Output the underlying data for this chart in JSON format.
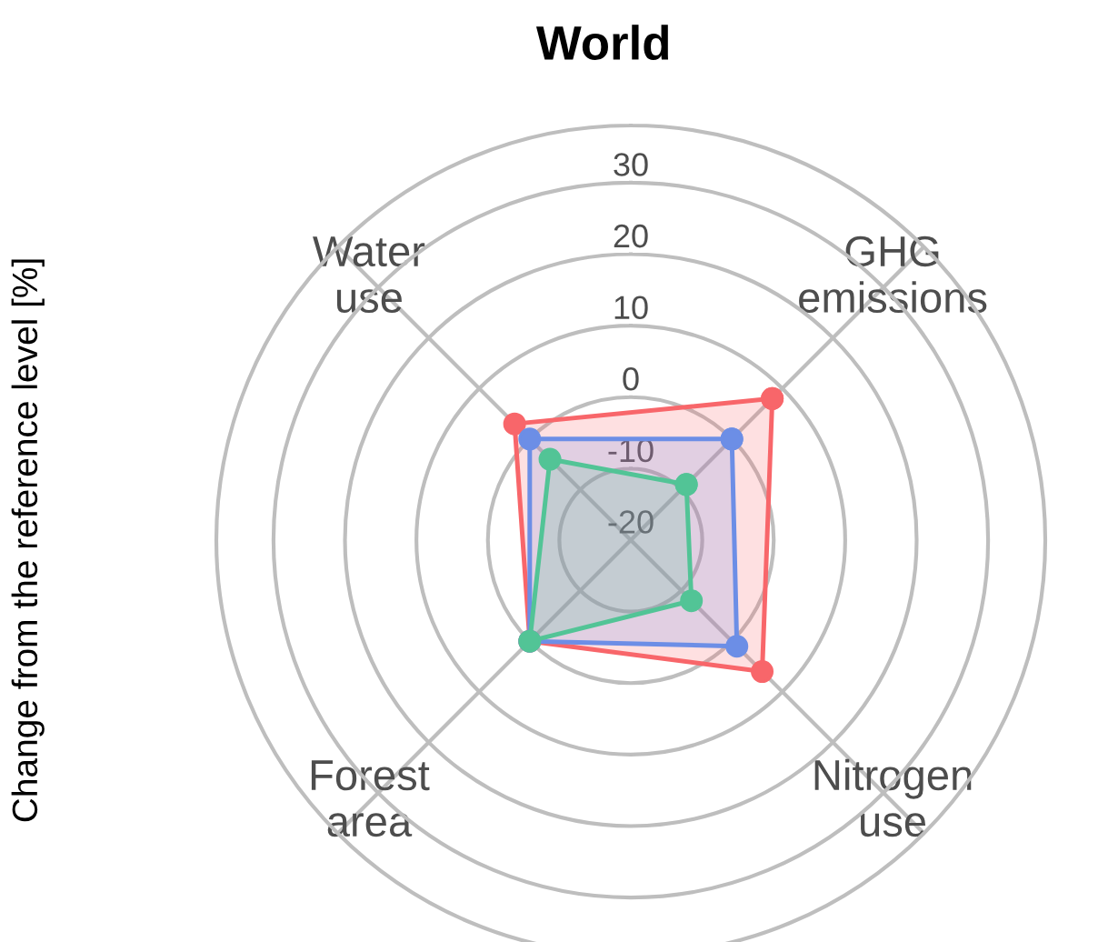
{
  "chart_data": {
    "type": "radar",
    "title": "World",
    "ylabel": "Change from the reference level [%]",
    "categories": [
      "GHG\nemissions",
      "Nitrogen\nuse",
      "Forest\narea",
      "Water\nuse"
    ],
    "ylim": [
      -20,
      38
    ],
    "yticks": [
      -20,
      -10,
      0,
      10,
      20,
      30
    ],
    "grid": true,
    "marker": "circle",
    "series": [
      {
        "color": "#f8666a",
        "values": [
          8,
          6,
          0,
          3
        ]
      },
      {
        "color": "#6c8ee6",
        "values": [
          0,
          1,
          0,
          0
        ]
      },
      {
        "color": "#52c496",
        "values": [
          -9,
          -8,
          0,
          -4
        ]
      }
    ]
  }
}
